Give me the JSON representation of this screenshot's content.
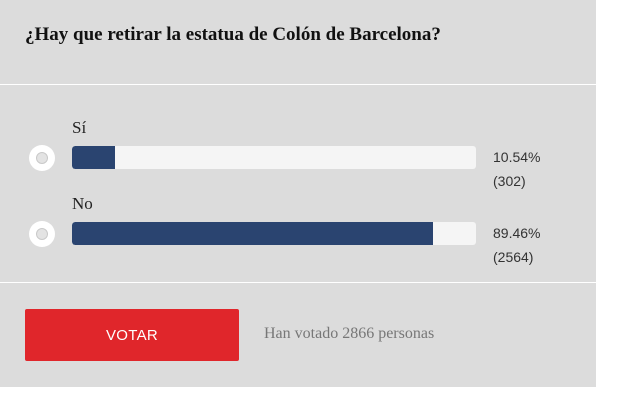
{
  "poll": {
    "question": "¿Hay que retirar la estatua de Colón de Barcelona?",
    "options": [
      {
        "label": "Sí",
        "percent_text": "10.54%",
        "count_text": "(302)",
        "percent": 10.54,
        "selected": false
      },
      {
        "label": "No",
        "percent_text": "89.46%",
        "count_text": "(2564)",
        "percent": 89.46,
        "selected": false
      }
    ],
    "vote_button_label": "VOTAR",
    "voted_text": "Han votado 2866 personas"
  },
  "colors": {
    "panel_background": "#dcdcdc",
    "bar_fill": "#2a4470",
    "bar_track": "#f5f5f5",
    "vote_button": "#e0262b"
  }
}
